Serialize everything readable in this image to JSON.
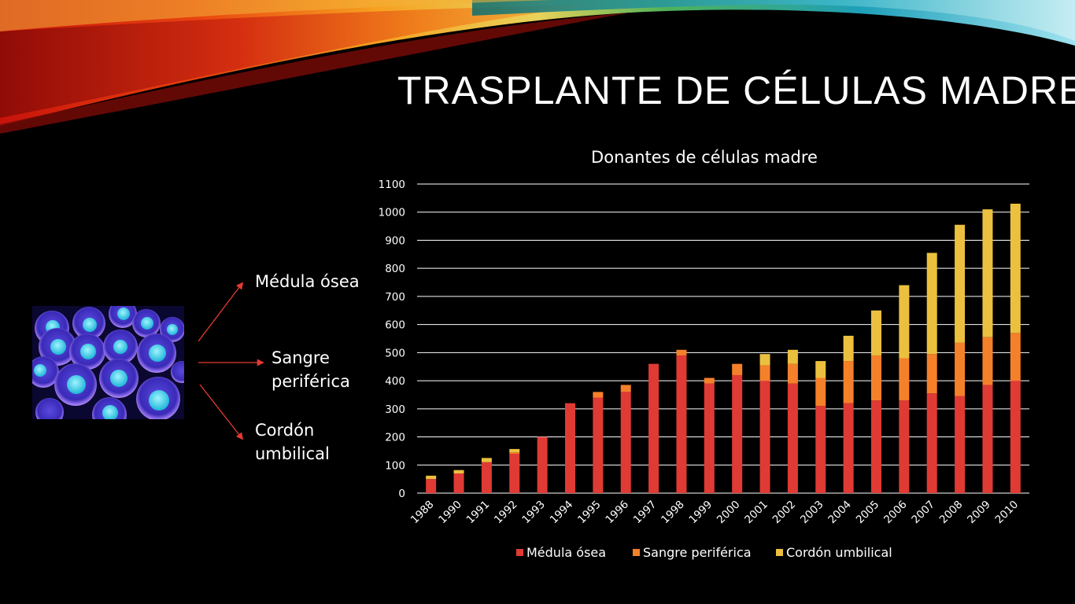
{
  "slide": {
    "title": "TRASPLANTE DE CÉLULAS MADRE"
  },
  "sources": {
    "item1": "Médula ósea",
    "item2_line1": "Sangre",
    "item2_line2": "periférica",
    "item3_line1": "Cordón",
    "item3_line2": "umbilical"
  },
  "image": {
    "description_icon": "cells-image"
  },
  "colors": {
    "background": "#000000",
    "medula": "#E03A34",
    "sangre": "#F5802A",
    "cordon": "#EBC03E",
    "arrow": "#E53A34",
    "gridline": "#FFFFFF"
  },
  "chart_data": {
    "type": "bar",
    "stacked": true,
    "title": "Donantes de células madre",
    "xlabel": "",
    "ylabel": "",
    "ylim": [
      0,
      1100
    ],
    "yticks": [
      0,
      100,
      200,
      300,
      400,
      500,
      600,
      700,
      800,
      900,
      1000,
      1100
    ],
    "grid": true,
    "legend_position": "bottom",
    "categories": [
      "1988",
      "1990",
      "1991",
      "1992",
      "1993",
      "1994",
      "1995",
      "1996",
      "1997",
      "1998",
      "1999",
      "2000",
      "2001",
      "2002",
      "2003",
      "2004",
      "2005",
      "2006",
      "2007",
      "2008",
      "2009",
      "2010"
    ],
    "series": [
      {
        "name": "Médula ósea",
        "color": "#E03A34",
        "values": [
          50,
          70,
          110,
          140,
          200,
          320,
          340,
          360,
          460,
          490,
          390,
          420,
          400,
          390,
          310,
          320,
          330,
          330,
          355,
          345,
          385,
          400
        ]
      },
      {
        "name": "Sangre periférica",
        "color": "#F5802A",
        "values": [
          0,
          0,
          0,
          5,
          0,
          0,
          20,
          25,
          0,
          20,
          20,
          40,
          55,
          70,
          100,
          150,
          160,
          150,
          140,
          190,
          170,
          170
        ]
      },
      {
        "name": "Cordón umbilical",
        "color": "#EBC03E",
        "values": [
          12,
          12,
          15,
          12,
          0,
          0,
          0,
          0,
          0,
          0,
          0,
          0,
          40,
          50,
          60,
          90,
          160,
          260,
          360,
          420,
          455,
          460
        ]
      }
    ]
  }
}
